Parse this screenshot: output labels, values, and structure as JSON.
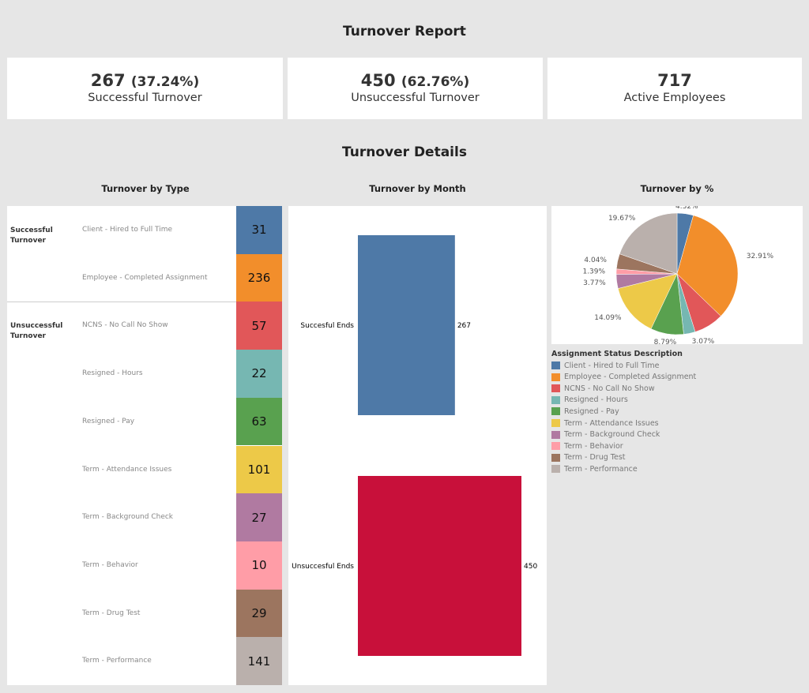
{
  "header": {
    "title": "Turnover Report",
    "details_title": "Turnover Details"
  },
  "kpis": [
    {
      "value": "267",
      "pct": "(37.24%)",
      "label": "Successful Turnover"
    },
    {
      "value": "450",
      "pct": "(62.76%)",
      "label": "Unsuccessful Turnover"
    },
    {
      "value": "717",
      "pct": "",
      "label": "Active Employees"
    }
  ],
  "chart_data": [
    {
      "type": "table",
      "title": "Turnover by Type",
      "groups": [
        {
          "name": "Successful Turnover",
          "rows": 2
        },
        {
          "name": "Unsuccessful Turnover",
          "rows": 8
        }
      ],
      "categories": [
        "Client - Hired to Full Time",
        "Employee - Completed Assignment",
        "NCNS - No Call No Show",
        "Resigned - Hours",
        "Resigned - Pay",
        "Term - Attendance Issues",
        "Term - Background Check",
        "Term - Behavior",
        "Term - Drug Test",
        "Term - Performance"
      ],
      "values": [
        31,
        236,
        57,
        22,
        63,
        101,
        27,
        10,
        29,
        141
      ]
    },
    {
      "type": "bar",
      "title": "Turnover by Month",
      "orientation": "horizontal",
      "categories": [
        "Succesful Ends",
        "Unsuccesful Ends"
      ],
      "values": [
        267,
        450
      ],
      "colors": [
        "#4e79a7",
        "#c8103a"
      ],
      "xlim": [
        0,
        450
      ]
    },
    {
      "type": "pie",
      "title": "Turnover by %",
      "legend_title": "Assignment Status Description",
      "categories": [
        "Client - Hired to Full Time",
        "Employee - Completed Assignment",
        "NCNS - No Call No Show",
        "Resigned - Hours",
        "Resigned - Pay",
        "Term - Attendance Issues",
        "Term - Background Check",
        "Term - Behavior",
        "Term - Drug Test",
        "Term - Performance"
      ],
      "values": [
        4.32,
        32.91,
        7.95,
        3.07,
        8.79,
        14.09,
        3.77,
        1.39,
        4.04,
        19.67
      ],
      "labels": [
        "4.32%",
        "32.91%",
        "",
        "3.07%",
        "8.79%",
        "14.09%",
        "3.77%",
        "1.39%",
        "4.04%",
        "19.67%"
      ],
      "colors": [
        "#4e79a7",
        "#f28e2b",
        "#e15759",
        "#76b7b2",
        "#59a14f",
        "#edc948",
        "#b07aa1",
        "#ff9da7",
        "#9c755f",
        "#bab0ac"
      ],
      "legend": "bottom-left"
    }
  ]
}
